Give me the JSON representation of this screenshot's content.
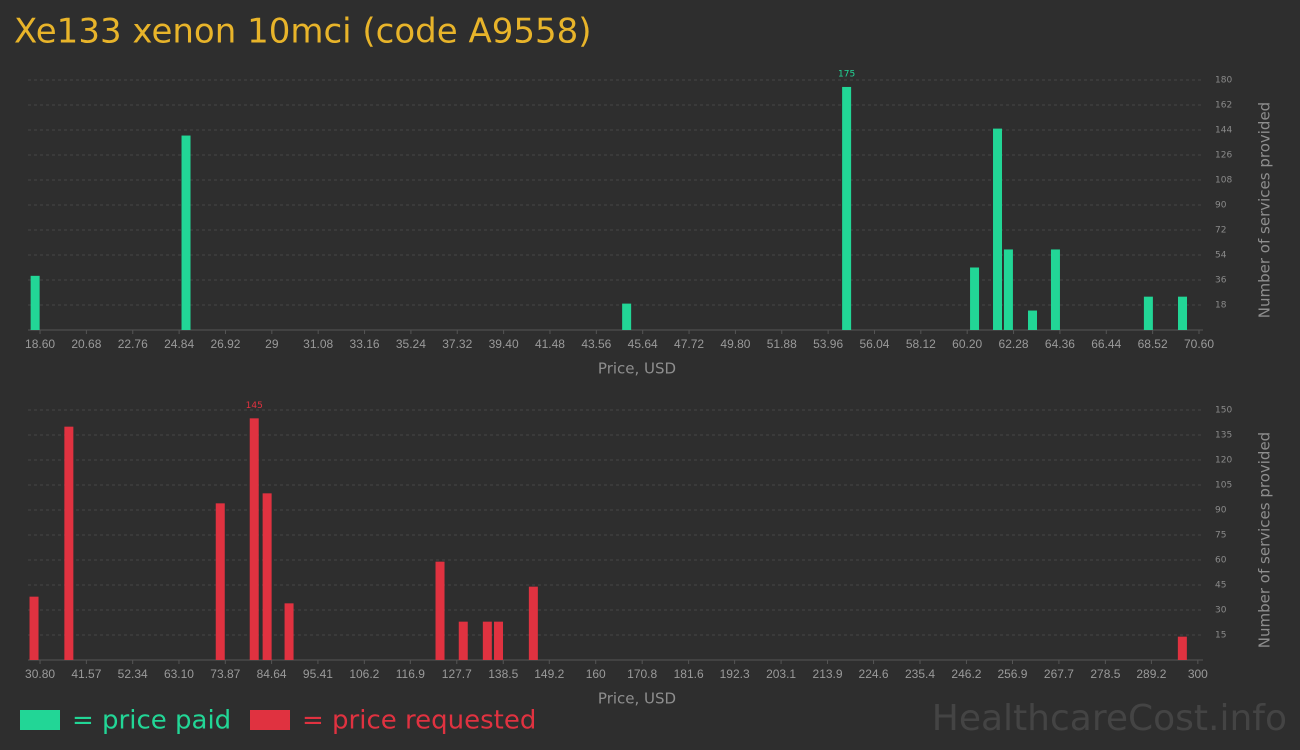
{
  "title": "Xe133 xenon 10mci (code A9558)",
  "watermark": "HealthcareCost.info",
  "chart_data": [
    {
      "type": "bar",
      "xlabel": "Price, USD",
      "ylabel": "Number of services provided",
      "grid": true,
      "x": [
        18.38,
        25.15,
        44.92,
        54.79,
        60.53,
        61.56,
        62.05,
        63.13,
        64.16,
        68.33,
        69.86
      ],
      "series": [
        {
          "name": "= price paid",
          "color": "#22d696",
          "values": [
            39,
            140,
            19,
            175,
            45,
            145,
            58,
            14,
            58,
            24,
            24
          ]
        }
      ],
      "xlim": [
        18.06,
        70.78
      ],
      "xticks": [
        {
          "value": 18.6,
          "label": "18.60"
        },
        20.68,
        22.76,
        24.84,
        26.92,
        29,
        31.08,
        33.16,
        35.24,
        37.32,
        {
          "value": 39.4,
          "label": "39.40"
        },
        41.48,
        43.56,
        45.64,
        47.72,
        {
          "value": 49.8,
          "label": "49.80"
        },
        51.88,
        53.96,
        56.04,
        58.12,
        {
          "value": 60.2,
          "label": "60.20"
        },
        62.28,
        64.36,
        66.44,
        68.52,
        {
          "value": 70.6,
          "label": "70.60"
        }
      ],
      "ylim": [
        0,
        180
      ],
      "yticks": [
        18,
        36,
        54,
        72,
        90,
        108,
        126,
        144,
        162,
        180
      ]
    },
    {
      "type": "bar",
      "xlabel": "Price, USD",
      "ylabel": "Number of services provided",
      "grid": true,
      "x": [
        29.4,
        37.5,
        72.7,
        80.6,
        83.6,
        88.7,
        123.8,
        129.2,
        134.8,
        137.4,
        145.5,
        296.4
      ],
      "series": [
        {
          "name": "= price requested",
          "color": "#e03240",
          "values": [
            38,
            140,
            94,
            145,
            100,
            34,
            59,
            23,
            23,
            23,
            44,
            14
          ]
        }
      ],
      "xlim": [
        28.0,
        301.2
      ],
      "xticks": [
        {
          "value": 30.8,
          "label": "30.80"
        },
        41.57,
        52.34,
        {
          "value": 63.1,
          "label": "63.10"
        },
        73.87,
        84.64,
        95.41,
        106.2,
        116.9,
        127.7,
        138.5,
        149.2,
        160,
        170.8,
        181.6,
        192.3,
        203.1,
        213.9,
        224.6,
        235.4,
        246.2,
        256.9,
        267.7,
        278.5,
        289.2,
        300
      ],
      "ylim": [
        0,
        150
      ],
      "yticks": [
        15,
        30,
        45,
        60,
        75,
        90,
        105,
        120,
        135,
        150
      ]
    }
  ]
}
